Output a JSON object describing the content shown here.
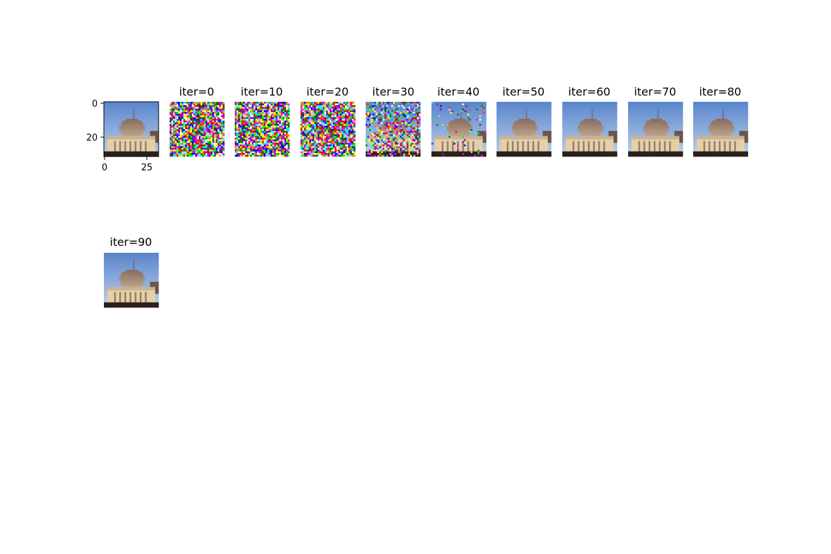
{
  "figure": {
    "reference": {
      "y_ticks": [
        "0",
        "20"
      ],
      "x_ticks": [
        "0",
        "25"
      ]
    },
    "panels": [
      {
        "title": "iter=0",
        "noise": 1.0
      },
      {
        "title": "iter=10",
        "noise": 1.0
      },
      {
        "title": "iter=20",
        "noise": 0.92
      },
      {
        "title": "iter=30",
        "noise": 0.45
      },
      {
        "title": "iter=40",
        "noise": 0.05
      },
      {
        "title": "iter=50",
        "noise": 0.0
      },
      {
        "title": "iter=60",
        "noise": 0.0
      },
      {
        "title": "iter=70",
        "noise": 0.0
      },
      {
        "title": "iter=80",
        "noise": 0.0
      },
      {
        "title": "iter=90",
        "noise": 0.0
      }
    ]
  },
  "colors": {
    "sky_top": "#5b86cc",
    "sky_bottom": "#b3c8e6",
    "building": "#e6cfa8",
    "roof": "#c9b396",
    "rock": "#8a6b5e",
    "ground": "#2a1f1a"
  }
}
